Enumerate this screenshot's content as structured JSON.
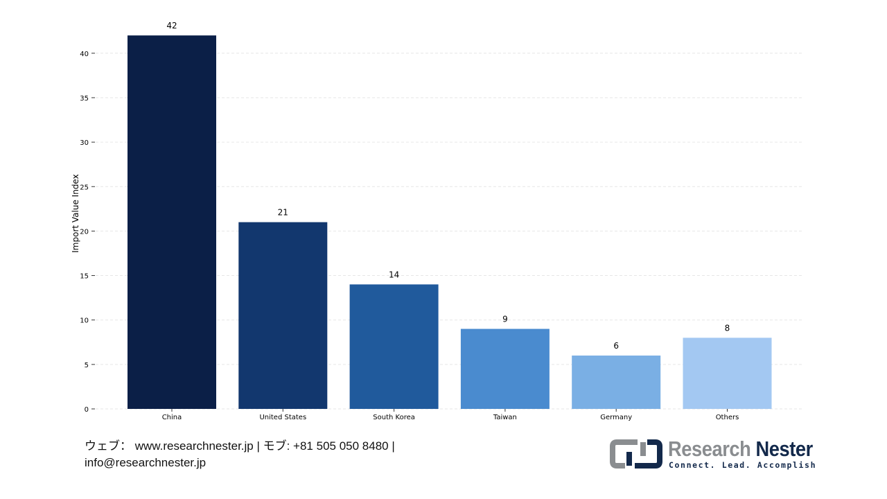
{
  "chart_data": {
    "type": "bar",
    "title": "",
    "xlabel": "",
    "ylabel": "Import Value Index",
    "categories": [
      "China",
      "United States",
      "South Korea",
      "Taiwan",
      "Germany",
      "Others"
    ],
    "values": [
      42,
      21,
      14,
      9,
      6,
      8
    ],
    "data_labels": [
      "42",
      "21",
      "14",
      "9",
      "6",
      "8"
    ],
    "colors": [
      "#0b1f47",
      "#12376e",
      "#205a9c",
      "#4a8bcf",
      "#7aafe4",
      "#a3c8f2"
    ],
    "ylim": [
      0,
      43.5
    ],
    "yticks": [
      0,
      5,
      10,
      15,
      20,
      25,
      30,
      35,
      40
    ],
    "grid": "horizontal dashed",
    "legend": "none"
  },
  "footer": {
    "line1": "ウェブ： www.researchnester.jp | モブ: +81 505 050 8480 |",
    "line2": "info@researchnester.jp"
  },
  "logo": {
    "name_part1": "Research",
    "name_part2": "Nester",
    "tagline": "Connect. Lead. Accomplish"
  }
}
